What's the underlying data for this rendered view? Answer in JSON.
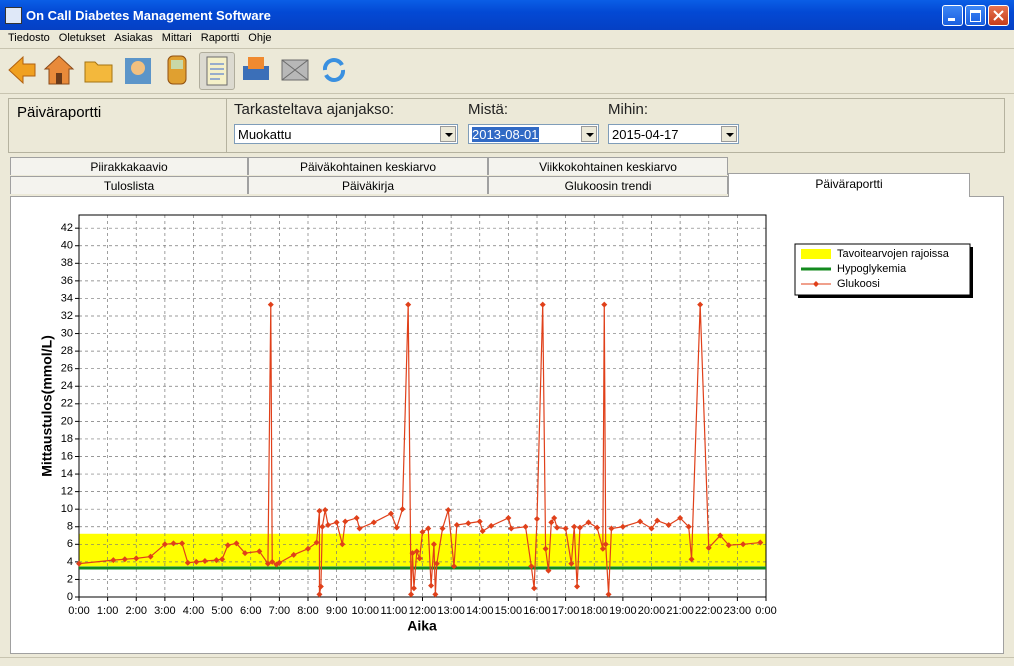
{
  "window": {
    "title": "On Call Diabetes Management Software"
  },
  "menu": [
    "Tiedosto",
    "Oletukset",
    "Asiakas",
    "Mittari",
    "Raportti",
    "Ohje"
  ],
  "report": {
    "title": "Päiväraportti",
    "period_label": "Tarkasteltava ajanjakso:",
    "period_value": "Muokattu",
    "from_label": "Mistä:",
    "from_value": "2013-08-01",
    "to_label": "Mihin:",
    "to_value": "2015-04-17"
  },
  "tabs": {
    "back_row": [
      "Piirakkakaavio",
      "Päiväkohtainen keskiarvo",
      "Viikkokohtainen keskiarvo"
    ],
    "front_row": [
      "Tuloslista",
      "Päiväkirja",
      "Glukoosin trendi",
      "Päiväraportti"
    ]
  },
  "chart_data": {
    "type": "line",
    "x_label": "Aika",
    "y_label": "Mittaustulos(mmol/L)",
    "xlim": [
      0,
      24
    ],
    "ylim": [
      0,
      43.5
    ],
    "xticks": [
      {
        "value": 0,
        "label": "0:00"
      },
      {
        "value": 1,
        "label": "1:00"
      },
      {
        "value": 2,
        "label": "2:00"
      },
      {
        "value": 3,
        "label": "3:00"
      },
      {
        "value": 4,
        "label": "4:00"
      },
      {
        "value": 5,
        "label": "5:00"
      },
      {
        "value": 6,
        "label": "6:00"
      },
      {
        "value": 7,
        "label": "7:00"
      },
      {
        "value": 8,
        "label": "8:00"
      },
      {
        "value": 9,
        "label": "9:00"
      },
      {
        "value": 10,
        "label": "10:00"
      },
      {
        "value": 11,
        "label": "11:00"
      },
      {
        "value": 12,
        "label": "12:00"
      },
      {
        "value": 13,
        "label": "13:00"
      },
      {
        "value": 14,
        "label": "14:00"
      },
      {
        "value": 15,
        "label": "15:00"
      },
      {
        "value": 16,
        "label": "16:00"
      },
      {
        "value": 17,
        "label": "17:00"
      },
      {
        "value": 18,
        "label": "18:00"
      },
      {
        "value": 19,
        "label": "19:00"
      },
      {
        "value": 20,
        "label": "20:00"
      },
      {
        "value": 21,
        "label": "21:00"
      },
      {
        "value": 22,
        "label": "22:00"
      },
      {
        "value": 23,
        "label": "23:00"
      },
      {
        "value": 24,
        "label": "0:00"
      }
    ],
    "yticks": [
      0,
      2,
      4,
      6,
      8,
      10,
      12,
      14,
      16,
      18,
      20,
      22,
      24,
      26,
      28,
      30,
      32,
      34,
      36,
      38,
      40,
      42
    ],
    "grid": true,
    "legend": "upper right",
    "bands": [
      {
        "name": "Tavoitearvojen rajoissa",
        "color": "#ffff00",
        "values": [
          3.5,
          7.2
        ]
      }
    ],
    "lines": [
      {
        "name": "Hypoglykemia",
        "color": "#138a1e",
        "value": 3.3
      }
    ],
    "series": [
      {
        "name": "Glukoosi",
        "color": "#e0401a",
        "x": [
          0.0,
          1.2,
          1.6,
          2.0,
          2.5,
          3.0,
          3.3,
          3.6,
          3.8,
          4.1,
          4.4,
          4.8,
          5.0,
          5.2,
          5.5,
          5.8,
          6.3,
          6.6,
          6.7,
          6.75,
          6.9,
          7.0,
          7.5,
          8.0,
          8.3,
          8.4,
          8.4,
          8.45,
          8.5,
          8.6,
          8.7,
          9.0,
          9.2,
          9.3,
          9.7,
          9.8,
          10.3,
          10.9,
          11.1,
          11.3,
          11.5,
          11.6,
          11.65,
          11.7,
          11.8,
          11.9,
          12.0,
          12.2,
          12.3,
          12.4,
          12.45,
          12.5,
          12.7,
          12.9,
          13.1,
          13.2,
          13.6,
          14.0,
          14.1,
          14.4,
          15.0,
          15.1,
          15.6,
          15.8,
          15.9,
          16.0,
          16.2,
          16.3,
          16.4,
          16.5,
          16.6,
          16.7,
          17.0,
          17.2,
          17.3,
          17.4,
          17.5,
          17.8,
          18.1,
          18.3,
          18.35,
          18.4,
          18.5,
          18.6,
          19.0,
          19.6,
          20.0,
          20.2,
          20.6,
          21.0,
          21.3,
          21.4,
          21.7,
          22.0,
          22.4,
          22.7,
          23.2,
          23.8
        ],
        "values": [
          3.8,
          4.2,
          4.3,
          4.4,
          4.6,
          6.0,
          6.1,
          6.1,
          3.9,
          4.0,
          4.1,
          4.2,
          4.3,
          5.9,
          6.1,
          5.0,
          5.2,
          3.8,
          33.3,
          4.0,
          3.7,
          3.9,
          4.8,
          5.5,
          6.2,
          9.8,
          0.3,
          1.2,
          8.0,
          9.9,
          8.2,
          8.5,
          6.0,
          8.6,
          9.0,
          7.8,
          8.5,
          9.5,
          7.9,
          10.0,
          33.3,
          0.3,
          5.0,
          1.0,
          5.2,
          4.4,
          7.4,
          7.8,
          1.3,
          6.0,
          0.3,
          3.8,
          7.8,
          9.9,
          3.5,
          8.2,
          8.4,
          8.6,
          7.5,
          8.1,
          9.0,
          7.8,
          8.0,
          3.5,
          1.0,
          8.9,
          33.3,
          5.5,
          3.0,
          8.5,
          9.0,
          7.9,
          7.8,
          3.8,
          8.0,
          1.2,
          7.9,
          8.5,
          7.9,
          5.5,
          33.3,
          6.0,
          0.3,
          7.8,
          8.0,
          8.6,
          7.8,
          8.7,
          8.2,
          9.0,
          8.0,
          4.3,
          33.3,
          5.6,
          7.0,
          5.9,
          6.0,
          6.2
        ]
      }
    ]
  }
}
